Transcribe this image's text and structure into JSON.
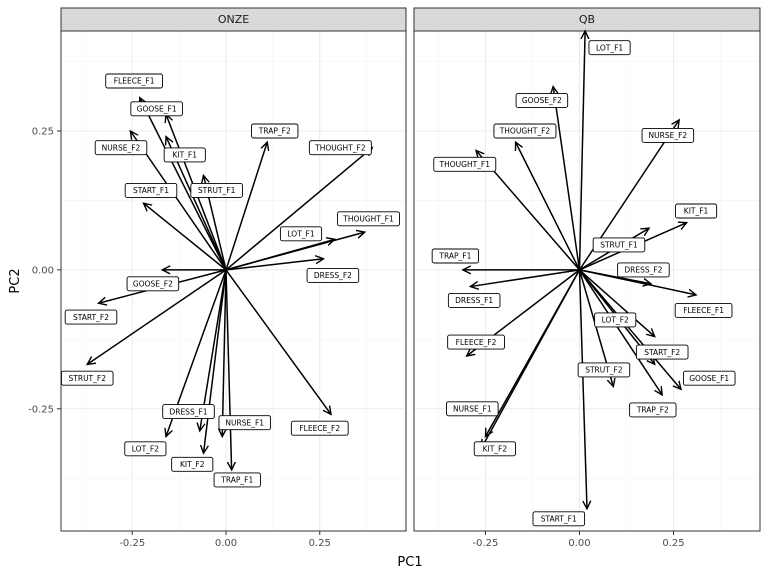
{
  "chart_data": {
    "type": "biplot",
    "xlabel": "PC1",
    "ylabel": "PC2",
    "xlim": [
      -0.44,
      0.48
    ],
    "ylim": [
      -0.47,
      0.43
    ],
    "x_ticks": [
      -0.25,
      0.0,
      0.25
    ],
    "x_tick_labels": [
      "-0.25",
      "0.00",
      "0.25"
    ],
    "y_ticks": [
      -0.25,
      0.0,
      0.25
    ],
    "y_tick_labels": [
      "-0.25",
      "0.00",
      "0.25"
    ],
    "grid": true,
    "panels": [
      {
        "title": "ONZE",
        "vectors": [
          {
            "label": "FLEECE_F1",
            "x": -0.23,
            "y": 0.31,
            "label_x": -0.245,
            "label_y": 0.34
          },
          {
            "label": "GOOSE_F1",
            "x": -0.16,
            "y": 0.28,
            "label_x": -0.185,
            "label_y": 0.29
          },
          {
            "label": "KIT_F1",
            "x": -0.16,
            "y": 0.24,
            "label_x": -0.11,
            "label_y": 0.207
          },
          {
            "label": "NURSE_F2",
            "x": -0.255,
            "y": 0.25,
            "label_x": -0.28,
            "label_y": 0.22
          },
          {
            "label": "TRAP_F2",
            "x": 0.11,
            "y": 0.23,
            "label_x": 0.13,
            "label_y": 0.25
          },
          {
            "label": "THOUGHT_F2",
            "x": 0.39,
            "y": 0.22,
            "label_x": 0.305,
            "label_y": 0.22
          },
          {
            "label": "START_F1",
            "x": -0.22,
            "y": 0.12,
            "label_x": -0.2,
            "label_y": 0.143
          },
          {
            "label": "STRUT_F1",
            "x": -0.06,
            "y": 0.17,
            "label_x": -0.025,
            "label_y": 0.143
          },
          {
            "label": "THOUGHT_F1",
            "x": 0.37,
            "y": 0.068,
            "label_x": 0.38,
            "label_y": 0.092
          },
          {
            "label": "LOT_F1",
            "x": 0.29,
            "y": 0.055,
            "label_x": 0.2,
            "label_y": 0.065
          },
          {
            "label": "DRESS_F2",
            "x": 0.26,
            "y": 0.02,
            "label_x": 0.285,
            "label_y": -0.01
          },
          {
            "label": "GOOSE_F2",
            "x": -0.17,
            "y": 0.0,
            "label_x": -0.195,
            "label_y": -0.025
          },
          {
            "label": "START_F2",
            "x": -0.34,
            "y": -0.06,
            "label_x": -0.36,
            "label_y": -0.085
          },
          {
            "label": "STRUT_F2",
            "x": -0.37,
            "y": -0.17,
            "label_x": -0.37,
            "label_y": -0.195
          },
          {
            "label": "FLEECE_F2",
            "x": 0.28,
            "y": -0.26,
            "label_x": 0.25,
            "label_y": -0.285
          },
          {
            "label": "DRESS_F1",
            "x": -0.07,
            "y": -0.29,
            "label_x": -0.1,
            "label_y": -0.255
          },
          {
            "label": "NURSE_F1",
            "x": -0.01,
            "y": -0.3,
            "label_x": 0.05,
            "label_y": -0.275
          },
          {
            "label": "LOT_F2",
            "x": -0.16,
            "y": -0.3,
            "label_x": -0.215,
            "label_y": -0.322
          },
          {
            "label": "KIT_F2",
            "x": -0.06,
            "y": -0.33,
            "label_x": -0.09,
            "label_y": -0.35
          },
          {
            "label": "TRAP_F1",
            "x": 0.015,
            "y": -0.36,
            "label_x": 0.03,
            "label_y": -0.378
          }
        ]
      },
      {
        "title": "QB",
        "vectors": [
          {
            "label": "LOT_F1",
            "x": 0.015,
            "y": 0.43,
            "label_x": 0.08,
            "label_y": 0.4
          },
          {
            "label": "GOOSE_F2",
            "x": -0.07,
            "y": 0.33,
            "label_x": -0.1,
            "label_y": 0.305
          },
          {
            "label": "THOUGHT_F2",
            "x": -0.17,
            "y": 0.23,
            "label_x": -0.145,
            "label_y": 0.25
          },
          {
            "label": "NURSE_F2",
            "x": 0.265,
            "y": 0.27,
            "label_x": 0.235,
            "label_y": 0.242
          },
          {
            "label": "THOUGHT_F1",
            "x": -0.275,
            "y": 0.215,
            "label_x": -0.305,
            "label_y": 0.19
          },
          {
            "label": "KIT_F1",
            "x": 0.285,
            "y": 0.085,
            "label_x": 0.31,
            "label_y": 0.106
          },
          {
            "label": "STRUT_F1",
            "x": 0.185,
            "y": 0.075,
            "label_x": 0.105,
            "label_y": 0.045
          },
          {
            "label": "TRAP_F1",
            "x": -0.31,
            "y": 0.0,
            "label_x": -0.33,
            "label_y": 0.025
          },
          {
            "label": "DRESS_F2",
            "x": 0.19,
            "y": -0.025,
            "label_x": 0.17,
            "label_y": 0.0
          },
          {
            "label": "DRESS_F1",
            "x": -0.29,
            "y": -0.03,
            "label_x": -0.28,
            "label_y": -0.055
          },
          {
            "label": "FLEECE_F1",
            "x": 0.31,
            "y": -0.045,
            "label_x": 0.33,
            "label_y": -0.073
          },
          {
            "label": "LOT_F2",
            "x": 0.2,
            "y": -0.12,
            "label_x": 0.095,
            "label_y": -0.09
          },
          {
            "label": "FLEECE_F2",
            "x": -0.3,
            "y": -0.155,
            "label_x": -0.275,
            "label_y": -0.13
          },
          {
            "label": "START_F2",
            "x": 0.2,
            "y": -0.17,
            "label_x": 0.22,
            "label_y": -0.148
          },
          {
            "label": "STRUT_F2",
            "x": 0.09,
            "y": -0.21,
            "label_x": 0.065,
            "label_y": -0.18
          },
          {
            "label": "GOOSE_F1",
            "x": 0.27,
            "y": -0.215,
            "label_x": 0.345,
            "label_y": -0.195
          },
          {
            "label": "TRAP_F2",
            "x": 0.22,
            "y": -0.225,
            "label_x": 0.195,
            "label_y": -0.252
          },
          {
            "label": "NURSE_F1",
            "x": -0.25,
            "y": -0.3,
            "label_x": -0.285,
            "label_y": -0.25
          },
          {
            "label": "KIT_F2",
            "x": -0.26,
            "y": -0.32,
            "label_x": -0.225,
            "label_y": -0.322
          },
          {
            "label": "START_F1",
            "x": 0.02,
            "y": -0.43,
            "label_x": -0.055,
            "label_y": -0.448
          }
        ]
      }
    ]
  }
}
